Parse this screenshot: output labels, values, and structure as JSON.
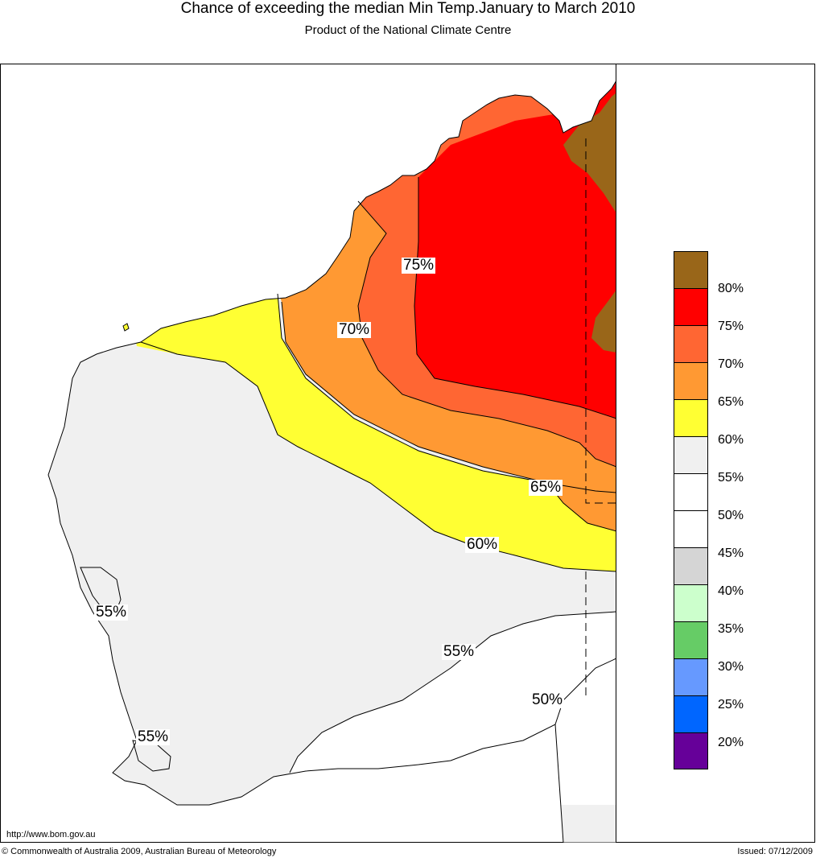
{
  "title": "Chance of exceeding the median Min Temp.January to March 2010",
  "subtitle": "Product of the National Climate Centre",
  "contour_labels": [
    "75%",
    "70%",
    "65%",
    "60%",
    "55%",
    "55%",
    "55%",
    "50%"
  ],
  "legend": {
    "colors": [
      "#996619",
      "#ff0000",
      "#ff6633",
      "#ff9933",
      "#ffff33",
      "#f0f0f0",
      "#ffffff",
      "#ffffff",
      "#d5d5d5",
      "#ccffcc",
      "#66cc66",
      "#6699ff",
      "#0066ff",
      "#660099"
    ],
    "labels": [
      "80%",
      "75%",
      "70%",
      "65%",
      "60%",
      "55%",
      "50%",
      "45%",
      "40%",
      "35%",
      "30%",
      "25%",
      "20%"
    ]
  },
  "footer": {
    "url": "http://www.bom.gov.au",
    "copyright": "© Commonwealth of Australia 2009, Australian Bureau of Meteorology",
    "issued": "Issued: 07/12/2009"
  }
}
